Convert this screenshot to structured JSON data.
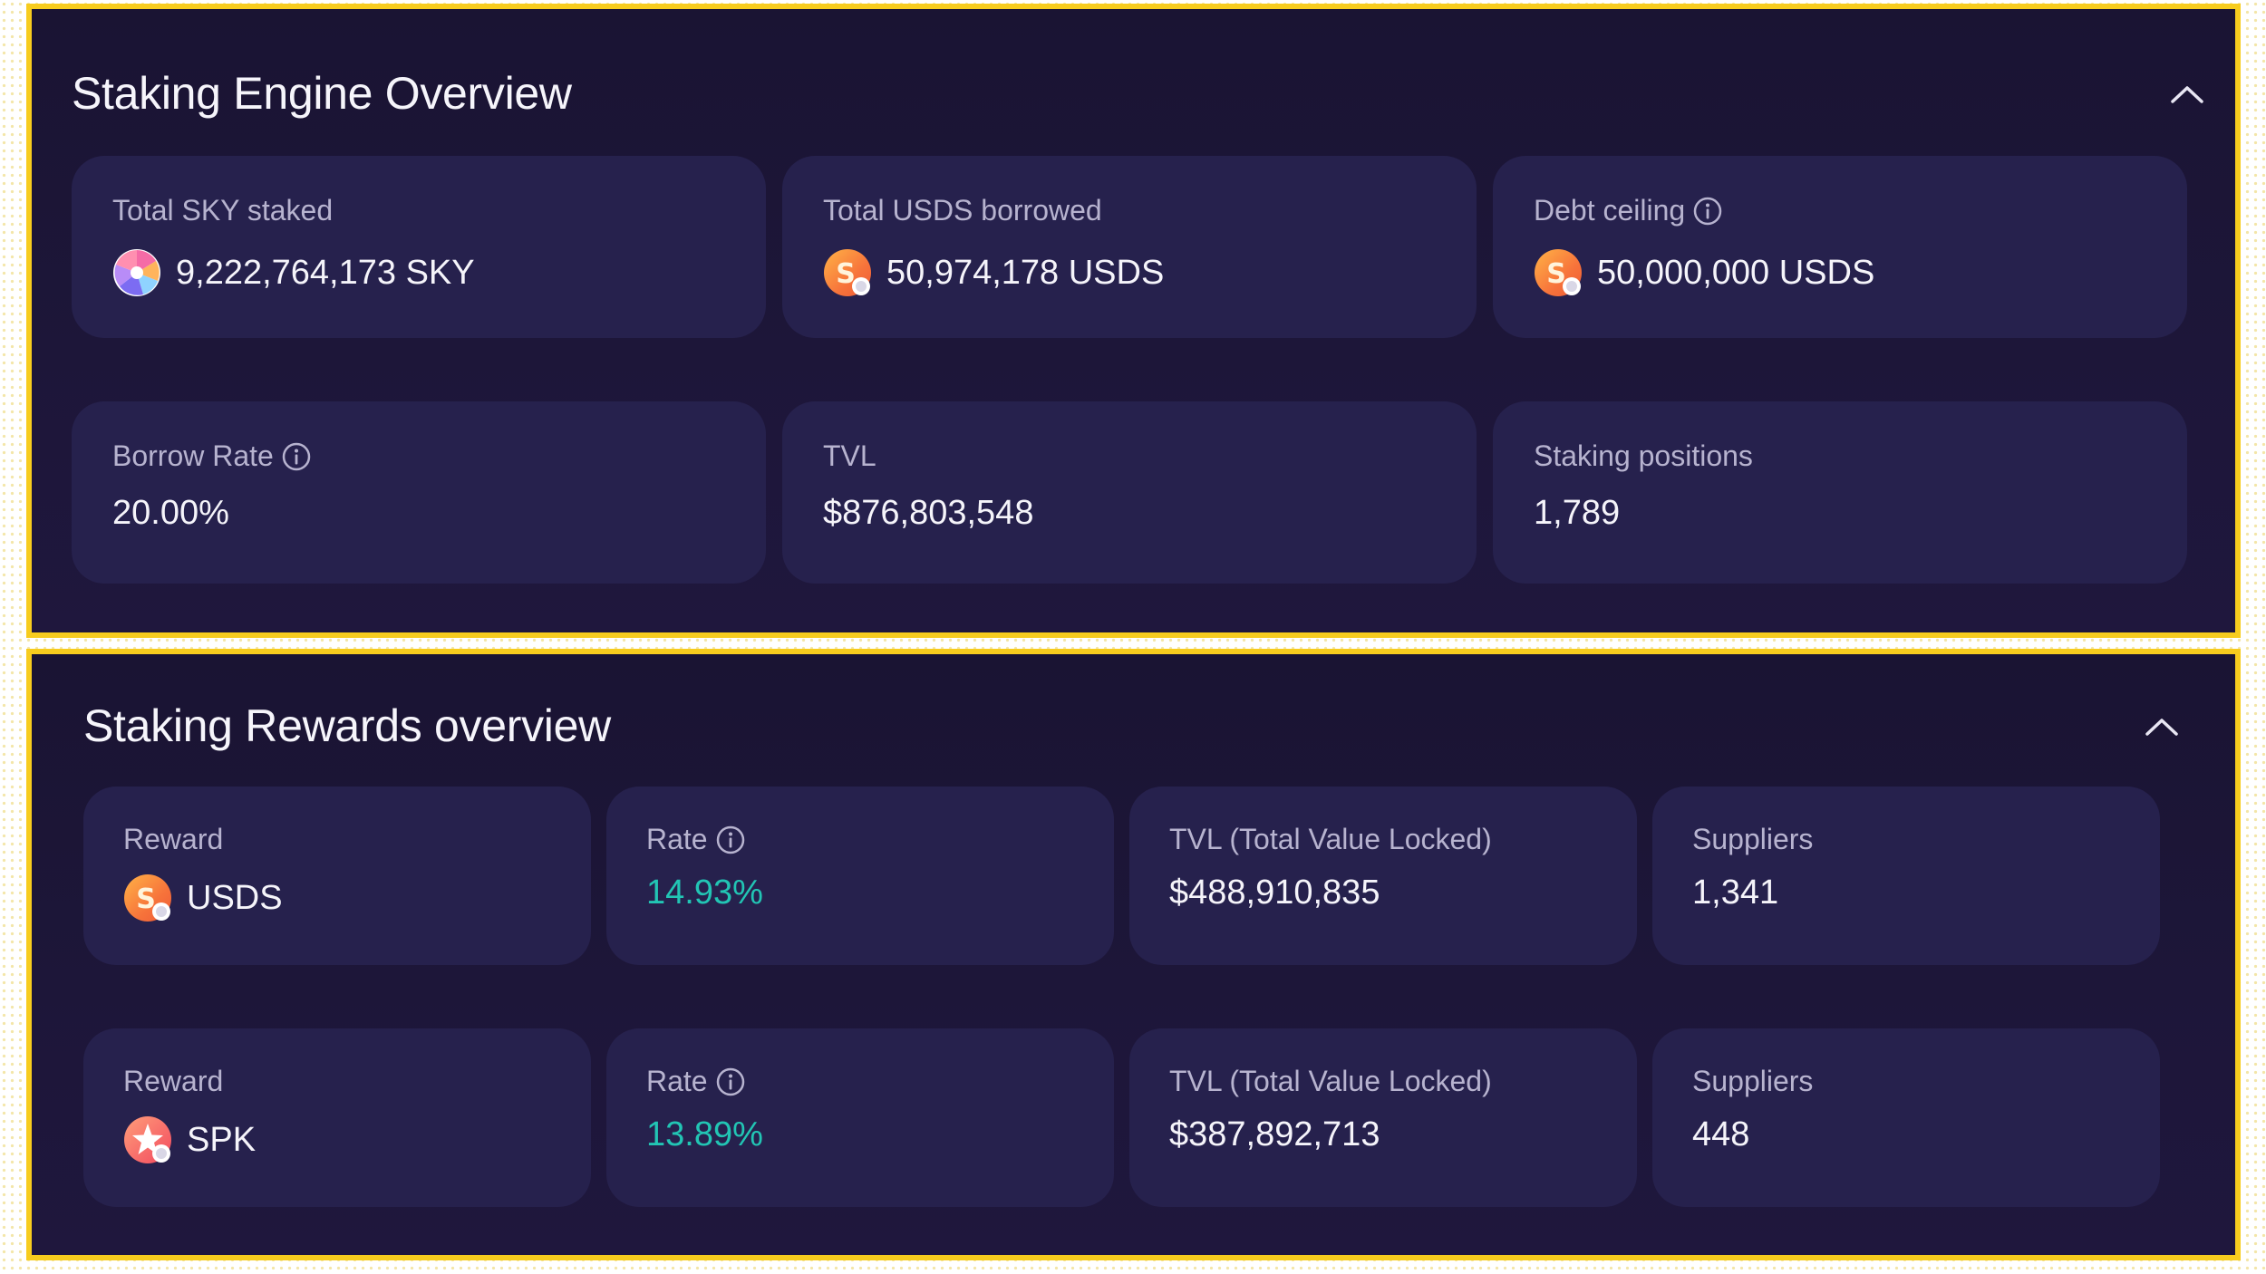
{
  "engine": {
    "title": "Staking Engine Overview",
    "cards": [
      {
        "label": "Total SKY staked",
        "value": "9,222,764,173 SKY",
        "icon": "sky-token-icon"
      },
      {
        "label": "Total USDS borrowed",
        "value": "50,974,178 USDS",
        "icon": "usds-token-icon"
      },
      {
        "label": "Debt ceiling",
        "value": "50,000,000 USDS",
        "icon": "usds-token-icon"
      },
      {
        "label": "Borrow Rate",
        "value": "20.00%"
      },
      {
        "label": "TVL",
        "value": "$876,803,548"
      },
      {
        "label": "Staking positions",
        "value": "1,789"
      }
    ]
  },
  "rewards": {
    "title": "Staking Rewards overview",
    "rows": [
      {
        "reward_label": "Reward",
        "reward_value": "USDS",
        "reward_icon": "usds-token-icon",
        "rate_label": "Rate",
        "rate_value": "14.93%",
        "tvl_label": "TVL (Total Value Locked)",
        "tvl_value": "$488,910,835",
        "suppliers_label": "Suppliers",
        "suppliers_value": "1,341"
      },
      {
        "reward_label": "Reward",
        "reward_value": "SPK",
        "reward_icon": "spk-token-icon",
        "rate_label": "Rate",
        "rate_value": "13.89%",
        "tvl_label": "TVL (Total Value Locked)",
        "tvl_value": "$387,892,713",
        "suppliers_label": "Suppliers",
        "suppliers_value": "448"
      }
    ]
  },
  "colors": {
    "highlight_border": "#f7cc1e",
    "panel_bg": "#1d1639",
    "card_bg": "#26214d",
    "rate_accent": "#22c5b4"
  }
}
